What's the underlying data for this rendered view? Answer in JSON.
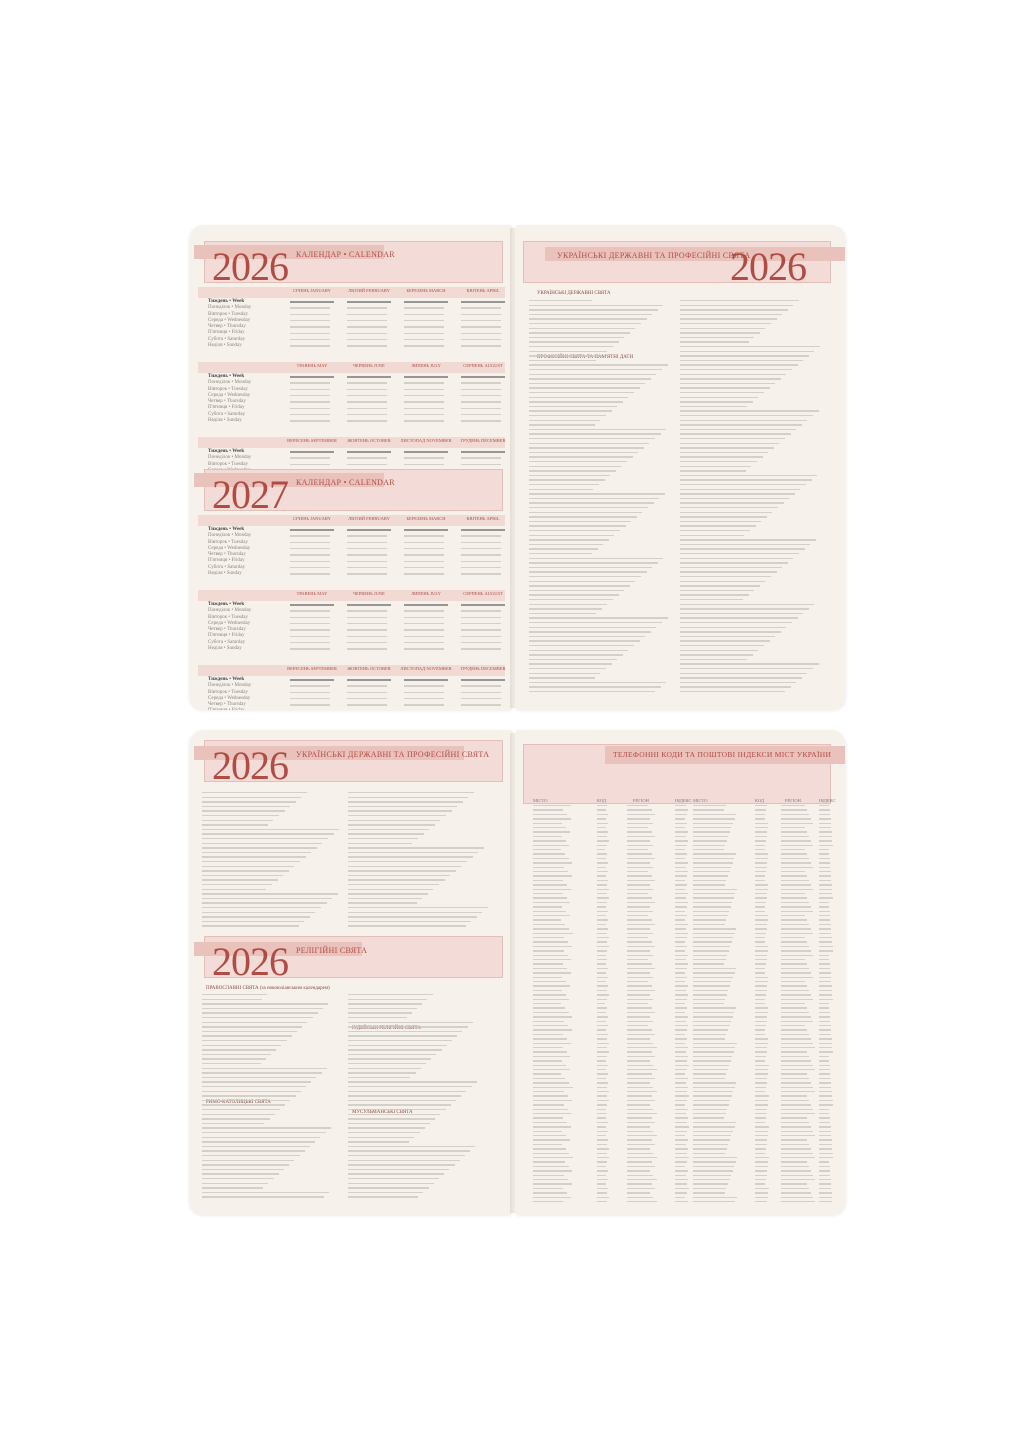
{
  "calendar_label": "КАЛЕНДАР • CALENDAR",
  "years": {
    "y2026": "2026",
    "y2027": "2027"
  },
  "months": [
    "СІЧЕНЬ JANUARY",
    "ЛЮТИЙ FEBRUARY",
    "БЕРЕЗЕНЬ MARCH",
    "КВІТЕНЬ APRIL",
    "ТРАВЕНЬ MAY",
    "ЧЕРВЕНЬ JUNE",
    "ЛИПЕНЬ JULY",
    "СЕРПЕНЬ AUGUST",
    "ВЕРЕСЕНЬ SEPTEMBER",
    "ЖОВТЕНЬ OCTOBER",
    "ЛИСТОПАД NOVEMBER",
    "ГРУДЕНЬ DECEMBER"
  ],
  "weekdays": "Тиждень • Week\nПонеділок • Monday\nВівторок • Tuesday\nСереда • Wednesday\nЧетвер • Thursday\nП'ятниця • Friday\nСубота • Saturday\nНеділя • Sunday",
  "holidays_page": {
    "title": "УКРАЇНСЬКІ ДЕРЖАВНІ ТА ПРОФЕСІЙНІ СВЯТА",
    "state_section": "УКРАЇНСЬКІ ДЕРЖАВНІ СВЯТА",
    "prof_section": "ПРОФЕСІЙНІ СВЯТА ТА ПАМ'ЯТНІ ДАТИ"
  },
  "religious_page": {
    "title": "РЕЛІГІЙНІ СВЯТА",
    "orthodox": "ПРАВОСЛАВНІ СВЯТА (за новоюліанським календарем)",
    "catholic": "РИМО-КАТОЛИЦЬКІ СВЯТА",
    "jewish": "ІУДЕЙСЬКІ РЕЛІГІЙНІ СВЯТА",
    "muslim": "МУСУЛЬМАНСЬКІ СВЯТА"
  },
  "codes_page": {
    "title": "ТЕЛЕФОННІ КОДИ ТА ПОШТОВІ ІНДЕКСИ МІСТ УКРАЇНИ",
    "columns": [
      "МІСТО",
      "КОД",
      "РЕГІОН",
      "ІНДЕКС"
    ]
  },
  "colors": {
    "accent": "#b04c44",
    "band": "#f3dcd7",
    "paper": "#f6f1eb"
  }
}
